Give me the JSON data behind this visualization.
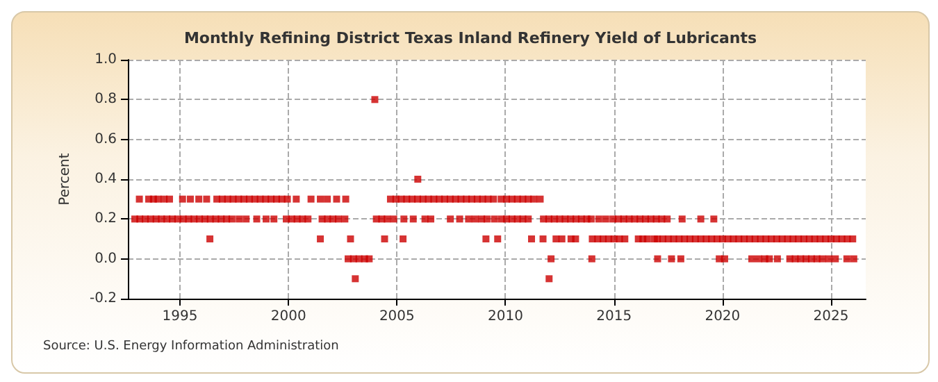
{
  "chart_data": {
    "type": "scatter",
    "title": "Monthly Refining District Texas Inland Refinery Yield of Lubricants",
    "ylabel": "Percent",
    "annotations": [
      "Source: U.S. Energy Information Administration"
    ],
    "xlim": [
      1992.6,
      2026.6
    ],
    "xticks": [
      1995,
      2000,
      2005,
      2010,
      2015,
      2020,
      2025
    ],
    "ylim": [
      -0.2,
      1.0
    ],
    "yticks": [
      -0.2,
      {
        "value": 0,
        "label": "0.0"
      },
      0.2,
      0.4,
      0.6,
      0.8,
      {
        "value": 1,
        "label": "1.0"
      }
    ],
    "grid": true,
    "marker": "square",
    "series": [
      {
        "color": "#cc0000",
        "x": [
          1993.13,
          1993.56,
          1993.78,
          1993.99,
          1994.27,
          1994.52,
          1995.12,
          1995.48,
          1995.87,
          1996.23,
          1996.7,
          1996.95,
          1997.2,
          1997.45,
          1997.7,
          1997.95,
          1998.2,
          1998.45,
          1998.7,
          1998.95,
          1999.2,
          1999.45,
          1999.7,
          1999.95,
          2000.36,
          2001.04,
          2001.47,
          2001.79,
          2002.22,
          2002.64,
          2004.7,
          2004.95,
          2005.2,
          2005.45,
          2005.7,
          2005.95,
          2006.2,
          2006.45,
          2006.7,
          2006.95,
          2007.2,
          2007.45,
          2007.7,
          2007.95,
          2008.2,
          2008.45,
          2008.7,
          2008.95,
          2009.2,
          2009.45,
          2009.8,
          2010.05,
          2010.3,
          2010.55,
          2010.8,
          2011.05,
          2011.3,
          2011.6
        ],
        "values": [
          0.3,
          0.3,
          0.3,
          0.3,
          0.3,
          0.3,
          0.3,
          0.3,
          0.3,
          0.3,
          0.3,
          0.3,
          0.3,
          0.3,
          0.3,
          0.3,
          0.3,
          0.3,
          0.3,
          0.3,
          0.3,
          0.3,
          0.3,
          0.3,
          0.3,
          0.3,
          0.3,
          0.3,
          0.3,
          0.3,
          0.3,
          0.3,
          0.3,
          0.3,
          0.3,
          0.3,
          0.3,
          0.3,
          0.3,
          0.3,
          0.3,
          0.3,
          0.3,
          0.3,
          0.3,
          0.3,
          0.3,
          0.3,
          0.3,
          0.3,
          0.3,
          0.3,
          0.3,
          0.3,
          0.3,
          0.3,
          0.3,
          0.3
        ]
      },
      {
        "color": "#cc0000",
        "x": [
          1992.92,
          1993.15,
          1993.4,
          1993.65,
          1993.9,
          1994.15,
          1994.4,
          1994.65,
          1994.9,
          1995.15,
          1995.4,
          1995.65,
          1995.9,
          1996.15,
          1996.4,
          1996.65,
          1996.9,
          1997.15,
          1997.4,
          1997.73,
          1998.05,
          1998.54,
          1998.97,
          1999.33,
          1999.9,
          2000.15,
          2000.4,
          2000.65,
          2000.9,
          2001.55,
          2001.8,
          2002.05,
          2002.3,
          2002.6,
          2004.05,
          2004.3,
          2004.55,
          2004.85,
          2005.32,
          2005.75,
          2006.29,
          2006.56,
          2007.46,
          2007.89,
          2008.3,
          2008.6,
          2008.9,
          2009.15,
          2009.49,
          2009.81,
          2010.05,
          2010.3,
          2010.55,
          2010.8,
          2011.05,
          2011.75,
          2012.0,
          2012.25,
          2012.5,
          2012.75,
          2013.0,
          2013.25,
          2013.5,
          2013.75,
          2013.95,
          2014.3,
          2014.62,
          2014.95,
          2015.2,
          2015.45,
          2015.7,
          2015.95,
          2016.2,
          2016.45,
          2016.7,
          2016.95,
          2017.2,
          2017.45,
          2018.14,
          2019.0,
          2019.6
        ],
        "values": [
          0.2,
          0.2,
          0.2,
          0.2,
          0.2,
          0.2,
          0.2,
          0.2,
          0.2,
          0.2,
          0.2,
          0.2,
          0.2,
          0.2,
          0.2,
          0.2,
          0.2,
          0.2,
          0.2,
          0.2,
          0.2,
          0.2,
          0.2,
          0.2,
          0.2,
          0.2,
          0.2,
          0.2,
          0.2,
          0.2,
          0.2,
          0.2,
          0.2,
          0.2,
          0.2,
          0.2,
          0.2,
          0.2,
          0.2,
          0.2,
          0.2,
          0.2,
          0.2,
          0.2,
          0.2,
          0.2,
          0.2,
          0.2,
          0.2,
          0.2,
          0.2,
          0.2,
          0.2,
          0.2,
          0.2,
          0.2,
          0.2,
          0.2,
          0.2,
          0.2,
          0.2,
          0.2,
          0.2,
          0.2,
          0.2,
          0.2,
          0.2,
          0.2,
          0.2,
          0.2,
          0.2,
          0.2,
          0.2,
          0.2,
          0.2,
          0.2,
          0.2,
          0.2,
          0.2,
          0.2,
          0.2
        ]
      },
      {
        "color": "#cc0000",
        "x": [
          1996.38,
          2001.47,
          2002.86,
          2004.43,
          2005.28,
          2009.1,
          2009.64,
          2011.2,
          2011.73,
          2012.33,
          2012.6,
          2013.02,
          2013.23,
          2014.0,
          2014.25,
          2014.5,
          2014.75,
          2015.0,
          2015.25,
          2015.5,
          2016.12,
          2016.33,
          2016.54,
          2016.86,
          2017.0,
          2017.25,
          2017.5,
          2017.75,
          2018.0,
          2018.25,
          2018.5,
          2018.75,
          2019.0,
          2019.25,
          2019.5,
          2019.75,
          2020.0,
          2020.25,
          2020.5,
          2020.75,
          2021.0,
          2021.25,
          2021.5,
          2021.75,
          2022.0,
          2022.25,
          2022.5,
          2022.75,
          2023.0,
          2023.25,
          2023.5,
          2023.75,
          2024.0,
          2024.25,
          2024.5,
          2024.75,
          2025.0,
          2025.25,
          2025.5,
          2025.75,
          2026.0
        ],
        "values": [
          0.1,
          0.1,
          0.1,
          0.1,
          0.1,
          0.1,
          0.1,
          0.1,
          0.1,
          0.1,
          0.1,
          0.1,
          0.1,
          0.1,
          0.1,
          0.1,
          0.1,
          0.1,
          0.1,
          0.1,
          0.1,
          0.1,
          0.1,
          0.1,
          0.1,
          0.1,
          0.1,
          0.1,
          0.1,
          0.1,
          0.1,
          0.1,
          0.1,
          0.1,
          0.1,
          0.1,
          0.1,
          0.1,
          0.1,
          0.1,
          0.1,
          0.1,
          0.1,
          0.1,
          0.1,
          0.1,
          0.1,
          0.1,
          0.1,
          0.1,
          0.1,
          0.1,
          0.1,
          0.1,
          0.1,
          0.1,
          0.1,
          0.1,
          0.1,
          0.1,
          0.1
        ]
      },
      {
        "color": "#cc0000",
        "x": [
          2002.75,
          2003.0,
          2003.25,
          2003.51,
          2003.72,
          2012.1,
          2013.98,
          2017.01,
          2017.65,
          2018.08,
          2019.85,
          2020.1,
          2021.35,
          2021.67,
          2021.95,
          2022.16,
          2022.53,
          2023.1,
          2023.35,
          2023.6,
          2023.85,
          2024.1,
          2024.35,
          2024.6,
          2024.9,
          2025.2,
          2025.73,
          2026.05
        ],
        "values": [
          0,
          0,
          0,
          0,
          0,
          0,
          0,
          0,
          0,
          0,
          0,
          0,
          0,
          0,
          0,
          0,
          0,
          0,
          0,
          0,
          0,
          0,
          0,
          0,
          0,
          0,
          0,
          0
        ]
      },
      {
        "color": "#cc0000",
        "x": [
          2003.08,
          2003.98,
          2005.96,
          2012.01
        ],
        "values": [
          -0.1,
          0.8,
          0.4,
          -0.1
        ]
      }
    ]
  }
}
